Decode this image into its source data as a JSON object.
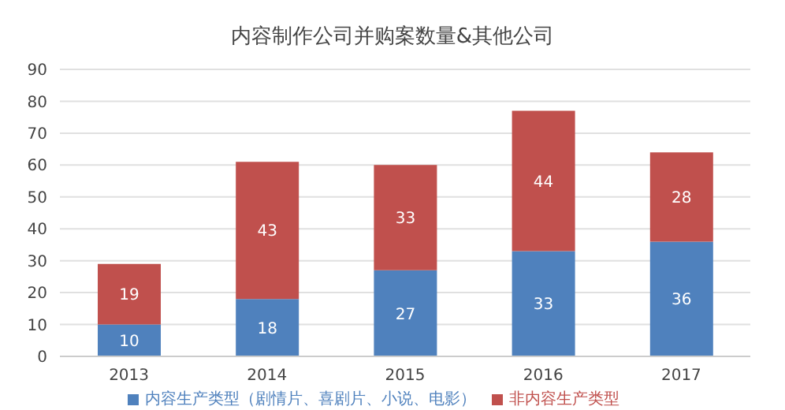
{
  "chart_data": {
    "type": "bar",
    "title": "内容制作公司并购案数量&其他公司",
    "categories": [
      "2013",
      "2014",
      "2015",
      "2016",
      "2017"
    ],
    "series": [
      {
        "name": "内容生产类型（剧情片、喜剧片、小说、电影）",
        "color": "#4f81bd",
        "values": [
          10,
          18,
          27,
          33,
          36
        ]
      },
      {
        "name": "非内容生产类型",
        "color": "#c0504d",
        "values": [
          19,
          43,
          33,
          44,
          28
        ]
      }
    ],
    "stacked": true,
    "ylim": [
      0,
      90
    ],
    "yticks": [
      0,
      10,
      20,
      30,
      40,
      50,
      60,
      70,
      80,
      90
    ],
    "grid": "y",
    "legend": "bottom",
    "data_labels": true
  }
}
